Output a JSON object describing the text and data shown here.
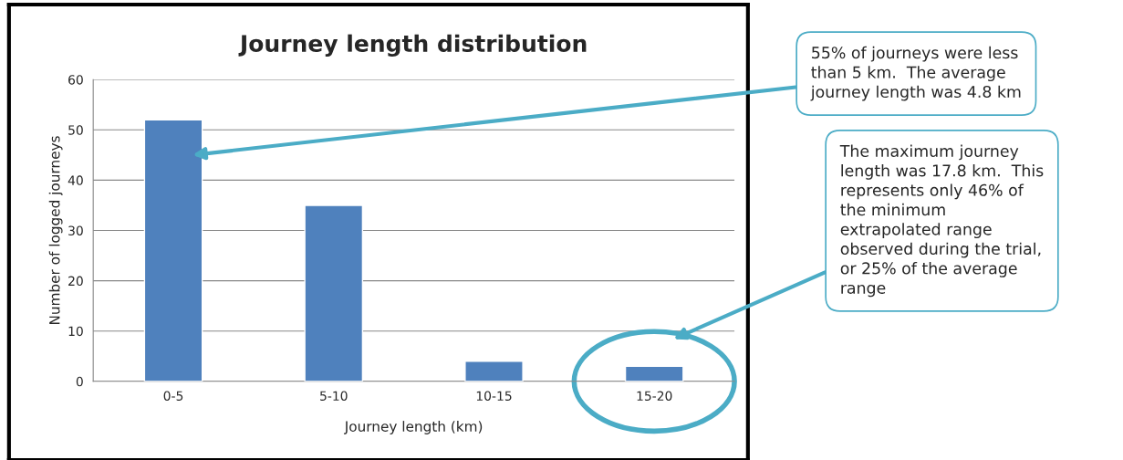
{
  "chart_data": {
    "type": "bar",
    "title": "Journey length distribution",
    "xlabel": "Journey length (km)",
    "ylabel": "Number of logged journeys",
    "categories": [
      "0-5",
      "5-10",
      "10-15",
      "15-20"
    ],
    "values": [
      52,
      35,
      4,
      3
    ],
    "color": "#4f81bd",
    "ylim": [
      0,
      60
    ],
    "yticks": [
      0,
      10,
      20,
      30,
      40,
      50,
      60
    ],
    "grid": "y",
    "annotations": [
      "55% of journeys were less\nthan 5 km.  The average\njourney length was 4.8 km",
      "The maximum journey\nlength was 17.8 km.  This\nrepresents only 46% of\nthe minimum\nextrapolated range\nobserved during the trial,\nor 25% of the average\nrange"
    ]
  }
}
